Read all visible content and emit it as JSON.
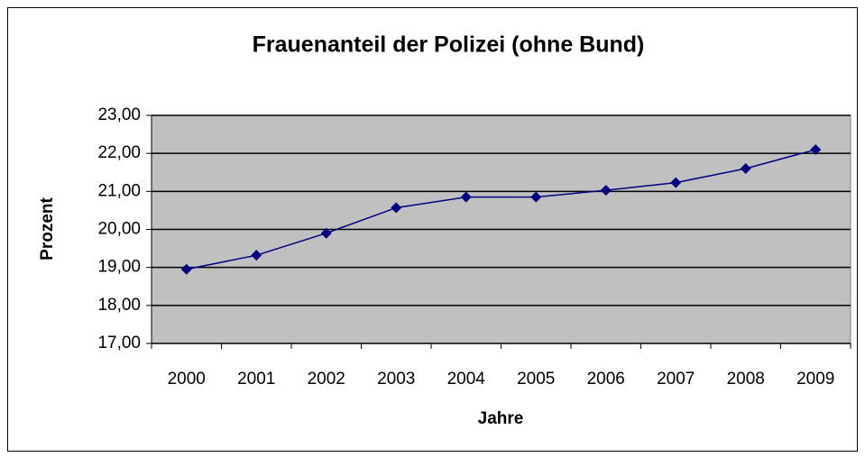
{
  "chart_data": {
    "type": "line",
    "title": "Frauenanteil der Polizei (ohne Bund)",
    "x_label": "Jahre",
    "y_label": "Prozent",
    "categories": [
      "2000",
      "2001",
      "2002",
      "2003",
      "2004",
      "2005",
      "2006",
      "2007",
      "2008",
      "2009"
    ],
    "values": [
      18.95,
      19.32,
      19.9,
      20.57,
      20.85,
      20.85,
      21.03,
      21.23,
      21.6,
      22.1
    ],
    "color": "#000080",
    "ylim": [
      17,
      23
    ],
    "yticks": [
      {
        "value": 17,
        "label": "17,00"
      },
      {
        "value": 18,
        "label": "18,00"
      },
      {
        "value": 19,
        "label": "19,00"
      },
      {
        "value": 20,
        "label": "20,00"
      },
      {
        "value": 21,
        "label": "21,00"
      },
      {
        "value": 22,
        "label": "22,00"
      },
      {
        "value": 23,
        "label": "23,00"
      }
    ],
    "grid": true
  }
}
